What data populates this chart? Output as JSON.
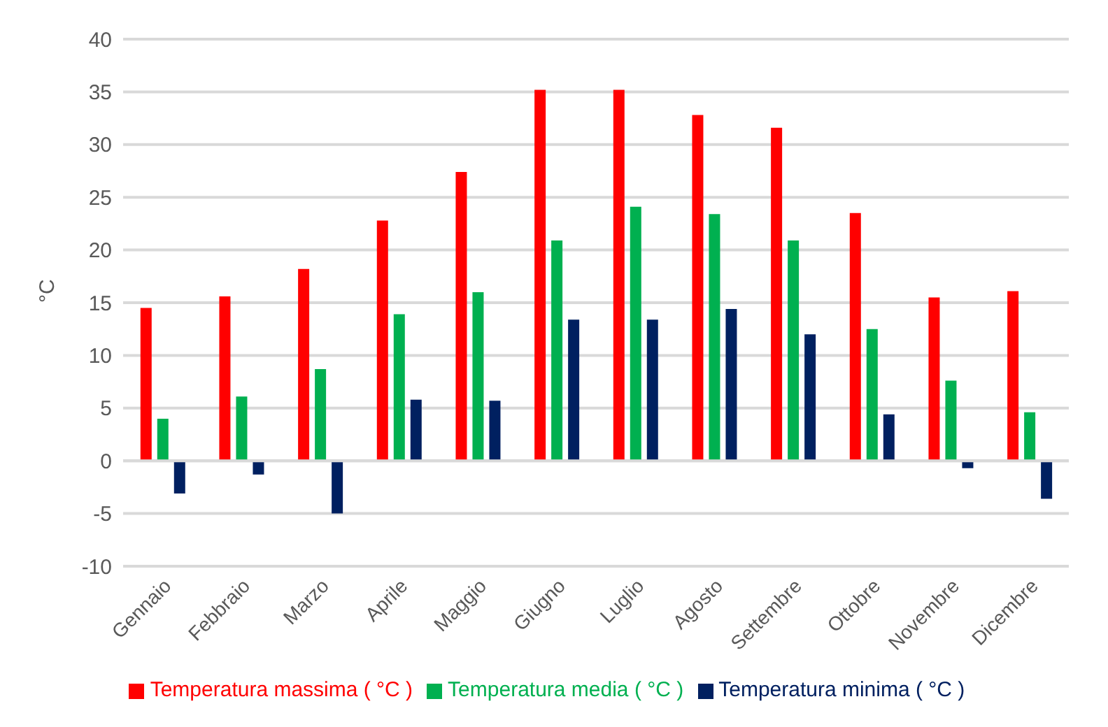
{
  "chart_data": {
    "type": "bar",
    "ylabel": "°C",
    "categories": [
      "Gennaio",
      "Febbraio",
      "Marzo",
      "Aprile",
      "Maggio",
      "Giugno",
      "Luglio",
      "Agosto",
      "Settembre",
      "Ottobre",
      "Novembre",
      "Dicembre"
    ],
    "series": [
      {
        "name": "Temperatura massima ( °C )",
        "color": "#ff0000",
        "values": [
          14.5,
          15.6,
          18.2,
          22.8,
          27.4,
          35.2,
          35.2,
          32.8,
          31.6,
          23.5,
          15.5,
          16.1
        ]
      },
      {
        "name": "Temperatura media ( °C )",
        "color": "#00b050",
        "values": [
          4.0,
          6.1,
          8.7,
          13.9,
          16.0,
          20.9,
          24.1,
          23.4,
          20.9,
          12.5,
          7.6,
          4.6
        ]
      },
      {
        "name": "Temperatura minima ( °C )",
        "color": "#002060",
        "values": [
          -3.1,
          -1.3,
          -5.0,
          5.8,
          5.7,
          13.4,
          13.4,
          14.4,
          12.0,
          4.4,
          -0.7,
          -3.6
        ]
      }
    ],
    "ylim": [
      -10,
      40
    ],
    "yticks": [
      {
        "value": -10,
        "label": "-10"
      },
      -5,
      0,
      5,
      10,
      15,
      20,
      25,
      30,
      35,
      40
    ],
    "grid": "y",
    "legend": "bottom"
  }
}
